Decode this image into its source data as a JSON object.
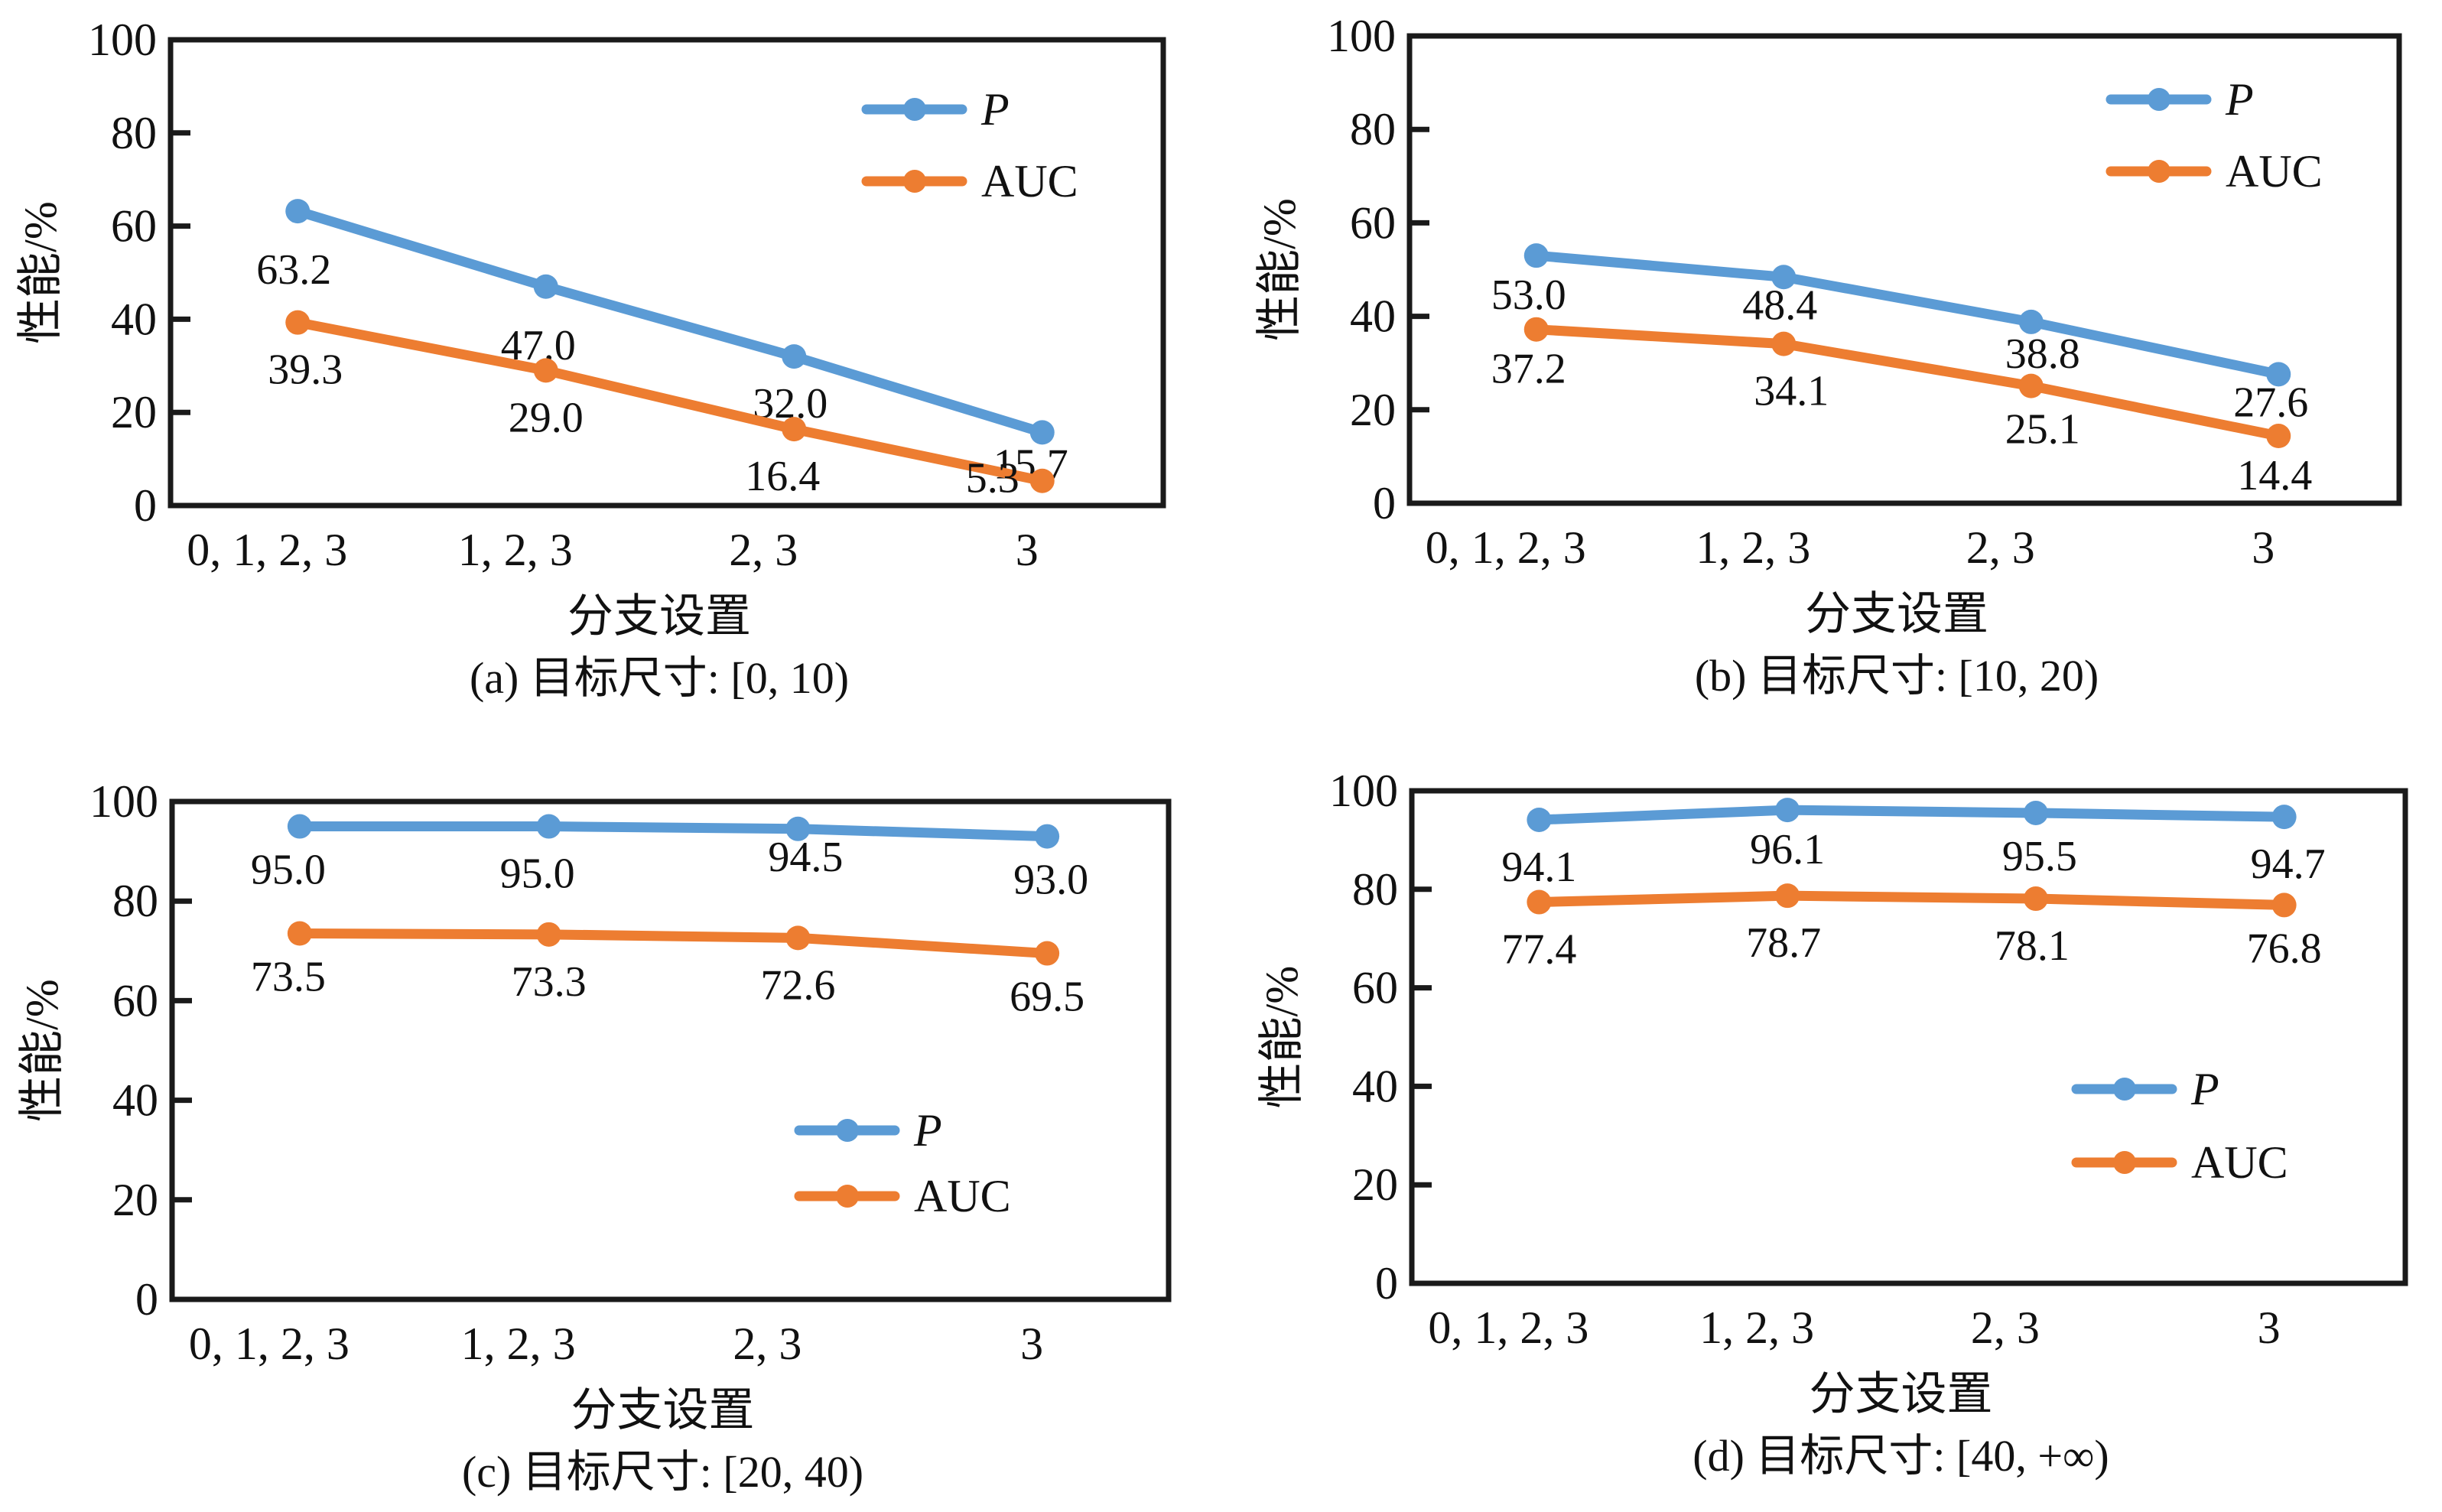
{
  "colors": {
    "P": "#5B9BD5",
    "AUC": "#ED7D31",
    "axis": "#1a1a1a"
  },
  "chart_data": [
    {
      "type": "line",
      "panel": "a",
      "title": "(a) 目标尺寸: [0, 10)",
      "xlabel": "分支设置",
      "ylabel": "性能/%",
      "categories": [
        "0, 1, 2, 3",
        "1, 2, 3",
        "2, 3",
        "3"
      ],
      "ylim": [
        0,
        100
      ],
      "yticks": [
        0,
        20,
        40,
        60,
        80,
        100
      ],
      "grid": false,
      "legend_position": "top-right",
      "series": [
        {
          "name": "P",
          "italic": true,
          "values": [
            63.2,
            47.0,
            32.0,
            15.7
          ],
          "labels": [
            "63.2",
            "47.0",
            "32.0",
            "15.7"
          ]
        },
        {
          "name": "AUC",
          "italic": false,
          "values": [
            39.3,
            29.0,
            16.4,
            5.3
          ],
          "labels": [
            "39.3",
            "29.0",
            "16.4",
            "5.3"
          ]
        }
      ]
    },
    {
      "type": "line",
      "panel": "b",
      "title": "(b) 目标尺寸: [10, 20)",
      "xlabel": "分支设置",
      "ylabel": "性能/%",
      "categories": [
        "0, 1, 2, 3",
        "1, 2, 3",
        "2, 3",
        "3"
      ],
      "ylim": [
        0,
        100
      ],
      "yticks": [
        0,
        20,
        40,
        60,
        80,
        100
      ],
      "grid": false,
      "legend_position": "top-right",
      "series": [
        {
          "name": "P",
          "italic": true,
          "values": [
            53.0,
            48.4,
            38.8,
            27.6
          ],
          "labels": [
            "53.0",
            "48.4",
            "38.8",
            "27.6"
          ]
        },
        {
          "name": "AUC",
          "italic": false,
          "values": [
            37.2,
            34.1,
            25.1,
            14.4
          ],
          "labels": [
            "37.2",
            "34.1",
            "25.1",
            "14.4"
          ]
        }
      ]
    },
    {
      "type": "line",
      "panel": "c",
      "title": "(c) 目标尺寸: [20, 40)",
      "xlabel": "分支设置",
      "ylabel": "性能/%",
      "categories": [
        "0, 1, 2, 3",
        "1, 2, 3",
        "2, 3",
        "3"
      ],
      "ylim": [
        0,
        100
      ],
      "yticks": [
        0,
        20,
        40,
        60,
        80,
        100
      ],
      "grid": false,
      "legend_position": "center-right",
      "series": [
        {
          "name": "P",
          "italic": true,
          "values": [
            95.0,
            95.0,
            94.5,
            93.0
          ],
          "labels": [
            "95.0",
            "95.0",
            "94.5",
            "93.0"
          ]
        },
        {
          "name": "AUC",
          "italic": false,
          "values": [
            73.5,
            73.3,
            72.6,
            69.5
          ],
          "labels": [
            "73.5",
            "73.3",
            "72.6",
            "69.5"
          ]
        }
      ]
    },
    {
      "type": "line",
      "panel": "d",
      "title": "(d) 目标尺寸: [40, +∞)",
      "xlabel": "分支设置",
      "ylabel": "性能/%",
      "categories": [
        "0, 1, 2, 3",
        "1, 2, 3",
        "2, 3",
        "3"
      ],
      "ylim": [
        0,
        100
      ],
      "yticks": [
        0,
        20,
        40,
        60,
        80,
        100
      ],
      "grid": false,
      "legend_position": "center-right",
      "series": [
        {
          "name": "P",
          "italic": true,
          "values": [
            94.1,
            96.1,
            95.5,
            94.7
          ],
          "labels": [
            "94.1",
            "96.1",
            "95.5",
            "94.7"
          ]
        },
        {
          "name": "AUC",
          "italic": false,
          "values": [
            77.4,
            78.7,
            78.1,
            76.8
          ],
          "labels": [
            "77.4",
            "78.7",
            "78.1",
            "76.8"
          ]
        }
      ]
    }
  ]
}
